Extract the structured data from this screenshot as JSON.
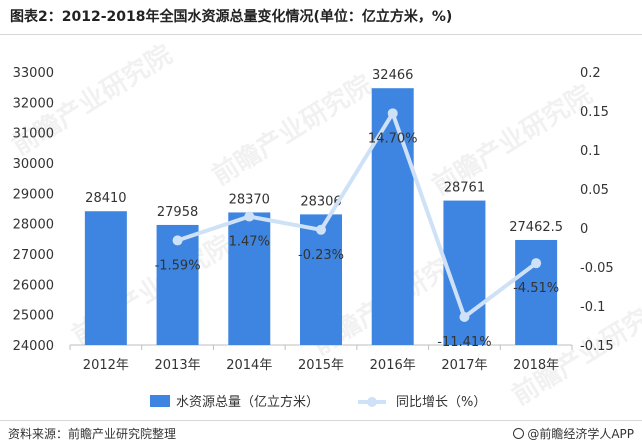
{
  "title": "图表2：2012-2018年全国水资源总量变化情况(单位：亿立方米，%)",
  "source": "资料来源：前瞻产业研究院整理",
  "brand": "@前瞻经济学人APP",
  "watermark": "前瞻产业研究院",
  "colors": {
    "bar": "#3d85e0",
    "line": "#cfe1f7",
    "axis": "#bfbfbf",
    "text": "#333333"
  },
  "chart_data": {
    "type": "bar+line",
    "categories": [
      "2012年",
      "2013年",
      "2014年",
      "2015年",
      "2016年",
      "2017年",
      "2018年"
    ],
    "series": [
      {
        "name": "水资源总量（亿立方米）",
        "type": "bar",
        "axis": "left",
        "values": [
          28410,
          27958,
          28370,
          28306,
          32466,
          28761,
          27462.5
        ],
        "labels": [
          "28410",
          "27958",
          "28370",
          "28306",
          "32466",
          "28761",
          "27462.5"
        ]
      },
      {
        "name": "同比增长（%）",
        "type": "line",
        "axis": "right",
        "values": [
          null,
          -0.0159,
          0.0147,
          -0.0023,
          0.147,
          -0.1141,
          -0.0451
        ],
        "labels": [
          "",
          "-1.59%",
          "1.47%",
          "-0.23%",
          "14.70%",
          "-11.41%",
          "-4.51%"
        ]
      }
    ],
    "y_left": {
      "min": 24000,
      "max": 33000,
      "ticks": [
        "24000",
        "25000",
        "26000",
        "27000",
        "28000",
        "29000",
        "30000",
        "31000",
        "32000",
        "33000"
      ]
    },
    "y_right": {
      "min": -0.15,
      "max": 0.2,
      "ticks": [
        "-0.15",
        "-0.1",
        "-0.05",
        "0",
        "0.05",
        "0.1",
        "0.15",
        "0.2"
      ]
    },
    "legend_position": "bottom",
    "grid": false
  }
}
